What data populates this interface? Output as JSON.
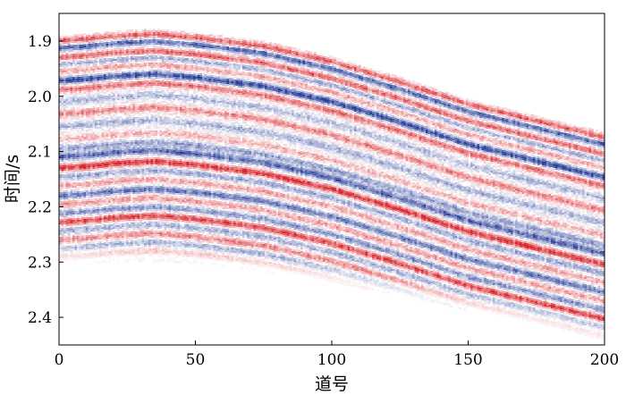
{
  "chart_data": {
    "type": "heatmap",
    "title": "",
    "xlabel": "道号",
    "ylabel": "时间/s",
    "xlim": [
      0,
      200
    ],
    "ylim": [
      2.45,
      1.85
    ],
    "x_ticks": [
      0,
      50,
      100,
      150,
      200
    ],
    "x_tick_labels": [
      "0",
      "50",
      "100",
      "150",
      "200"
    ],
    "y_ticks": [
      1.9,
      2.0,
      2.1,
      2.2,
      2.3,
      2.4
    ],
    "y_tick_labels": [
      "1.9",
      "2.0",
      "2.1",
      "2.2",
      "2.3",
      "2.4"
    ],
    "grid": false,
    "colormap": {
      "negative": "#2a3f9a",
      "zero": "#ffffff",
      "positive": "#d9262e"
    },
    "data_top_boundary": {
      "trace": [
        0,
        10,
        20,
        35,
        50,
        75,
        100,
        125,
        150,
        175,
        200
      ],
      "time": [
        1.89,
        1.887,
        1.882,
        1.878,
        1.884,
        1.9,
        1.928,
        1.965,
        2.005,
        2.035,
        2.065
      ]
    },
    "data_bottom_boundary": {
      "trace": [
        0,
        25,
        50,
        75,
        100,
        125,
        150,
        175,
        200
      ],
      "time": [
        2.3,
        2.297,
        2.3,
        2.315,
        2.335,
        2.36,
        2.385,
        2.41,
        2.44
      ]
    },
    "reflectors": [
      {
        "offset": 0.01,
        "polarity": 1,
        "amplitude": 0.75
      },
      {
        "offset": 0.022,
        "polarity": -1,
        "amplitude": 0.8
      },
      {
        "offset": 0.04,
        "polarity": 1,
        "amplitude": 0.7
      },
      {
        "offset": 0.052,
        "polarity": -1,
        "amplitude": 0.45
      },
      {
        "offset": 0.064,
        "polarity": 1,
        "amplitude": 0.4
      },
      {
        "offset": 0.082,
        "polarity": -1,
        "amplitude": 0.95
      },
      {
        "offset": 0.098,
        "polarity": 1,
        "amplitude": 0.65
      },
      {
        "offset": 0.12,
        "polarity": -1,
        "amplitude": 0.35
      },
      {
        "offset": 0.142,
        "polarity": 1,
        "amplitude": 0.55
      },
      {
        "offset": 0.165,
        "polarity": -1,
        "amplitude": 0.4
      },
      {
        "offset": 0.188,
        "polarity": 1,
        "amplitude": 0.35
      },
      {
        "offset": 0.205,
        "polarity": -1,
        "amplitude": 0.5
      },
      {
        "offset": 0.22,
        "polarity": -1,
        "amplitude": 0.8
      },
      {
        "offset": 0.24,
        "polarity": 1,
        "amplitude": 0.95
      },
      {
        "offset": 0.256,
        "polarity": -1,
        "amplitude": 0.45
      },
      {
        "offset": 0.272,
        "polarity": 1,
        "amplitude": 0.4
      },
      {
        "offset": 0.29,
        "polarity": -1,
        "amplitude": 0.7
      },
      {
        "offset": 0.306,
        "polarity": 1,
        "amplitude": 0.45
      },
      {
        "offset": 0.322,
        "polarity": -1,
        "amplitude": 0.55
      },
      {
        "offset": 0.338,
        "polarity": 1,
        "amplitude": 0.85
      },
      {
        "offset": 0.354,
        "polarity": -1,
        "amplitude": 0.4
      },
      {
        "offset": 0.37,
        "polarity": 1,
        "amplitude": 0.55
      },
      {
        "offset": 0.386,
        "polarity": -1,
        "amplitude": 0.4
      },
      {
        "offset": 0.402,
        "polarity": 1,
        "amplitude": 0.45
      },
      {
        "offset": 0.418,
        "polarity": -1,
        "amplitude": 0.3
      },
      {
        "offset": 0.435,
        "polarity": 1,
        "amplitude": 0.25
      }
    ]
  }
}
